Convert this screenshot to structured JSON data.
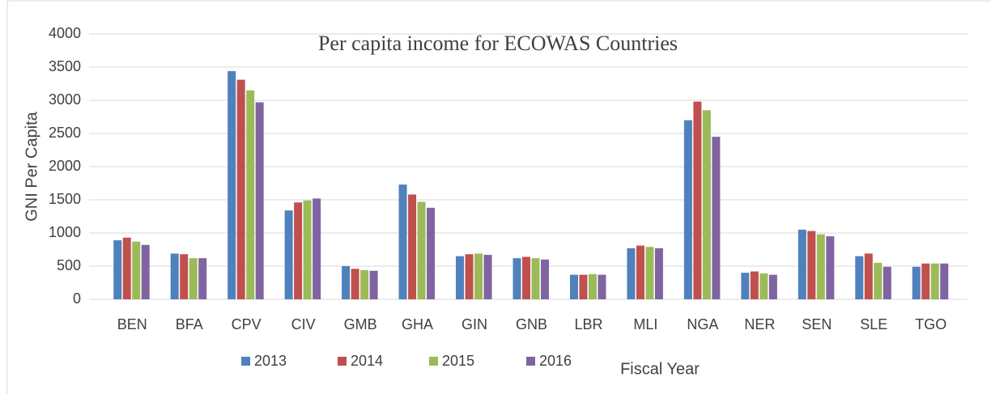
{
  "chart_data": {
    "type": "bar",
    "title": "Per capita income for ECOWAS Countries",
    "y_label": "GNI Per Capita",
    "x_label": "Fiscal Year",
    "categories": [
      "BEN",
      "BFA",
      "CPV",
      "CIV",
      "GMB",
      "GHA",
      "GIN",
      "GNB",
      "LBR",
      "MLI",
      "NGA",
      "NER",
      "SEN",
      "SLE",
      "TGO"
    ],
    "series": [
      {
        "name": "2013",
        "color": "#4f81bd",
        "values": [
          890,
          690,
          3440,
          1340,
          500,
          1730,
          650,
          620,
          370,
          770,
          2700,
          400,
          1050,
          650,
          490
        ]
      },
      {
        "name": "2014",
        "color": "#c0504d",
        "values": [
          930,
          680,
          3310,
          1460,
          460,
          1580,
          680,
          640,
          370,
          810,
          2980,
          420,
          1030,
          690,
          540
        ]
      },
      {
        "name": "2015",
        "color": "#9bbb59",
        "values": [
          870,
          620,
          3150,
          1490,
          440,
          1470,
          690,
          620,
          380,
          790,
          2850,
          390,
          980,
          550,
          540
        ]
      },
      {
        "name": "2016",
        "color": "#8064a2",
        "values": [
          820,
          620,
          2970,
          1520,
          430,
          1380,
          670,
          600,
          370,
          770,
          2450,
          370,
          950,
          490,
          540
        ]
      }
    ],
    "ylim": [
      0,
      4000
    ],
    "yticks": [
      0,
      500,
      1000,
      1500,
      2000,
      2500,
      3000,
      3500,
      4000
    ],
    "grid": true
  }
}
